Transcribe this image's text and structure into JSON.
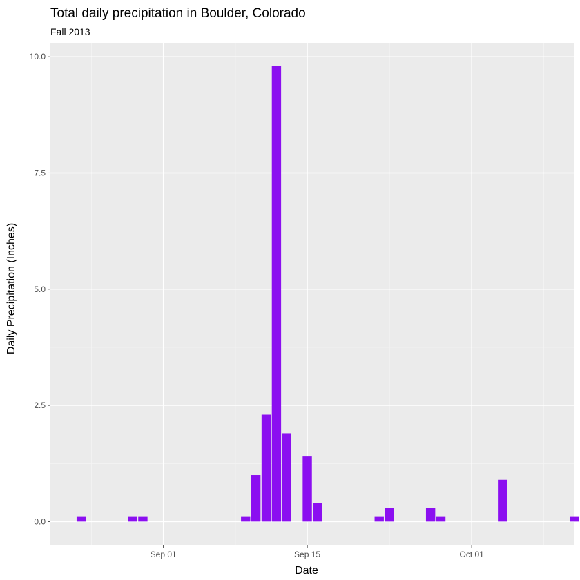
{
  "chart_data": {
    "type": "bar",
    "title": "Total daily precipitation in Boulder, Colorado",
    "subtitle": "Fall 2013",
    "xlabel": "Date",
    "ylabel": "Daily Precipitation (Inches)",
    "x_axis": {
      "type": "date",
      "range": [
        "2013-08-21",
        "2013-10-11"
      ],
      "major_ticks": [
        {
          "date": "2013-09-01",
          "label": "Sep 01"
        },
        {
          "date": "2013-09-15",
          "label": "Sep 15"
        },
        {
          "date": "2013-10-01",
          "label": "Oct 01"
        }
      ],
      "minor_gridlines": [
        "2013-08-25",
        "2013-09-08",
        "2013-09-23",
        "2013-10-08"
      ]
    },
    "y_axis": {
      "range": [
        -0.5,
        10.3
      ],
      "ticks": [
        0,
        2.5,
        5,
        7.5,
        10
      ],
      "tick_labels": [
        "0.0",
        "2.5",
        "5.0",
        "7.5",
        "10.0"
      ]
    },
    "grid": true,
    "series": [
      {
        "color": "#8b0ff0",
        "points": [
          {
            "x": "2013-08-24",
            "y": 0.1
          },
          {
            "x": "2013-08-29",
            "y": 0.1
          },
          {
            "x": "2013-08-30",
            "y": 0.1
          },
          {
            "x": "2013-09-09",
            "y": 0.1
          },
          {
            "x": "2013-09-10",
            "y": 1.0
          },
          {
            "x": "2013-09-11",
            "y": 2.3
          },
          {
            "x": "2013-09-12",
            "y": 9.8
          },
          {
            "x": "2013-09-13",
            "y": 1.9
          },
          {
            "x": "2013-09-15",
            "y": 1.4
          },
          {
            "x": "2013-09-16",
            "y": 0.4
          },
          {
            "x": "2013-09-22",
            "y": 0.1
          },
          {
            "x": "2013-09-23",
            "y": 0.3
          },
          {
            "x": "2013-09-27",
            "y": 0.3
          },
          {
            "x": "2013-09-28",
            "y": 0.1
          },
          {
            "x": "2013-10-04",
            "y": 0.9
          },
          {
            "x": "2013-10-11",
            "y": 0.1
          }
        ]
      }
    ],
    "colors": {
      "panel_background": "#ebebeb",
      "grid_major": "#ffffff",
      "grid_minor": "#f5f5f5",
      "bar": "#8b0ff0",
      "text": "#000000",
      "tick_text": "#4d4d4d",
      "tick_mark": "#333333"
    }
  }
}
